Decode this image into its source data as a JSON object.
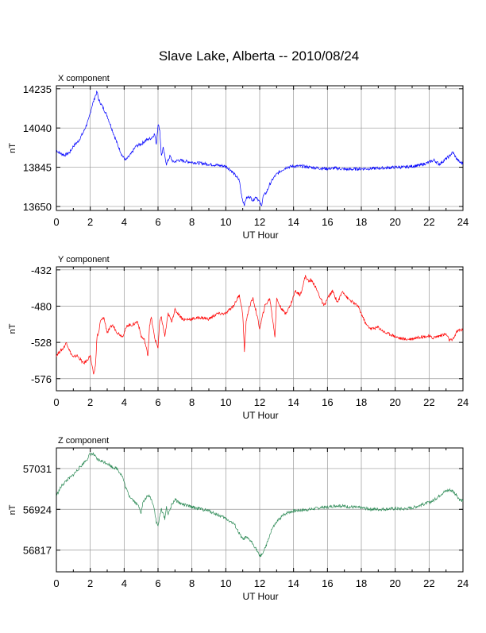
{
  "page": {
    "title": "Slave Lake, Alberta -- 2010/08/24"
  },
  "chart_data": [
    {
      "type": "line",
      "panel_label": "X component",
      "xlabel": "UT Hour",
      "ylabel": "nT",
      "xlim": [
        0,
        24
      ],
      "ylim": [
        13630,
        14250
      ],
      "xticks": [
        0,
        2,
        4,
        6,
        8,
        10,
        12,
        14,
        16,
        18,
        20,
        22,
        24
      ],
      "yticks": [
        13650,
        13845,
        14040,
        14235
      ],
      "grid": true,
      "color": "#0000ff",
      "series": [
        {
          "x": [
            0,
            0.2,
            0.5,
            0.8,
            1.0,
            1.3,
            1.6,
            1.9,
            2.1,
            2.3,
            2.4,
            2.5,
            2.7,
            3.0,
            3.3,
            3.6,
            3.9,
            4.1,
            4.4,
            4.7,
            5.0,
            5.3,
            5.6,
            5.8,
            5.9,
            6.0,
            6.1,
            6.2,
            6.3,
            6.5,
            6.7,
            6.9,
            7.2,
            7.6,
            8.0,
            8.5,
            9.0,
            9.5,
            10.0,
            10.3,
            10.6,
            10.8,
            10.9,
            11.0,
            11.1,
            11.2,
            11.4,
            11.6,
            11.8,
            12.0,
            12.1,
            12.2,
            12.4,
            12.6,
            12.8,
            13.0,
            13.3,
            13.6,
            14.0,
            14.5,
            15.0,
            15.5,
            16.0,
            16.5,
            17.0,
            17.5,
            18.0,
            18.5,
            19.0,
            19.5,
            20.0,
            20.5,
            21.0,
            21.5,
            22.0,
            22.3,
            22.6,
            22.9,
            23.2,
            23.4,
            23.6,
            23.8,
            24.0
          ],
          "y": [
            13930,
            13915,
            13905,
            13920,
            13950,
            13975,
            14020,
            14080,
            14150,
            14200,
            14220,
            14180,
            14150,
            14100,
            14030,
            13960,
            13900,
            13880,
            13910,
            13950,
            13960,
            13980,
            13990,
            14010,
            13960,
            14060,
            14030,
            13900,
            13940,
            13860,
            13900,
            13870,
            13880,
            13875,
            13870,
            13865,
            13860,
            13855,
            13850,
            13830,
            13800,
            13780,
            13720,
            13680,
            13660,
            13690,
            13700,
            13680,
            13700,
            13670,
            13650,
            13700,
            13720,
            13760,
            13790,
            13810,
            13830,
            13845,
            13850,
            13850,
            13845,
            13840,
            13838,
            13840,
            13835,
            13835,
            13838,
            13838,
            13840,
            13842,
            13845,
            13845,
            13850,
            13855,
            13870,
            13880,
            13860,
            13880,
            13900,
            13920,
            13890,
            13870,
            13865
          ]
        }
      ]
    },
    {
      "type": "line",
      "panel_label": "Y component",
      "xlabel": "UT Hour",
      "ylabel": "nT",
      "xlim": [
        0,
        24
      ],
      "ylim": [
        -592,
        -428
      ],
      "xticks": [
        0,
        2,
        4,
        6,
        8,
        10,
        12,
        14,
        16,
        18,
        20,
        22,
        24
      ],
      "yticks": [
        -576,
        -528,
        -480,
        -432
      ],
      "grid": true,
      "color": "#ff0000",
      "series": [
        {
          "x": [
            0,
            0.2,
            0.4,
            0.6,
            0.8,
            1.0,
            1.2,
            1.4,
            1.6,
            1.8,
            2.0,
            2.1,
            2.2,
            2.3,
            2.4,
            2.5,
            2.6,
            2.8,
            3.0,
            3.3,
            3.6,
            3.9,
            4.2,
            4.5,
            4.8,
            5.0,
            5.2,
            5.4,
            5.5,
            5.6,
            5.8,
            6.0,
            6.1,
            6.2,
            6.4,
            6.6,
            6.8,
            7.0,
            7.5,
            8.0,
            8.5,
            9.0,
            9.5,
            10.0,
            10.5,
            10.8,
            11.0,
            11.1,
            11.2,
            11.4,
            11.6,
            11.8,
            12.0,
            12.3,
            12.6,
            12.9,
            13.0,
            13.2,
            13.5,
            13.8,
            14.1,
            14.4,
            14.7,
            14.9,
            15.0,
            15.2,
            15.5,
            15.8,
            16.0,
            16.3,
            16.6,
            16.9,
            17.2,
            17.5,
            17.8,
            18.0,
            18.3,
            18.6,
            19.0,
            19.4,
            19.8,
            20.2,
            20.6,
            21.0,
            21.4,
            21.8,
            22.0,
            22.2,
            22.5,
            22.8,
            23.0,
            23.2,
            23.4,
            23.6,
            23.8,
            24.0
          ],
          "y": [
            -545,
            -540,
            -536,
            -528,
            -540,
            -548,
            -545,
            -550,
            -556,
            -552,
            -545,
            -560,
            -570,
            -560,
            -520,
            -515,
            -500,
            -495,
            -515,
            -505,
            -515,
            -520,
            -505,
            -505,
            -500,
            -520,
            -525,
            -545,
            -505,
            -495,
            -522,
            -535,
            -500,
            -495,
            -520,
            -490,
            -500,
            -485,
            -498,
            -497,
            -495,
            -497,
            -490,
            -490,
            -478,
            -465,
            -490,
            -540,
            -500,
            -480,
            -470,
            -488,
            -510,
            -480,
            -470,
            -520,
            -470,
            -480,
            -490,
            -480,
            -460,
            -465,
            -440,
            -448,
            -445,
            -450,
            -465,
            -480,
            -470,
            -460,
            -475,
            -460,
            -470,
            -475,
            -480,
            -490,
            -505,
            -510,
            -508,
            -515,
            -518,
            -522,
            -524,
            -523,
            -521,
            -520,
            -520,
            -522,
            -520,
            -518,
            -517,
            -525,
            -525,
            -515,
            -511,
            -512
          ]
        }
      ]
    },
    {
      "type": "line",
      "panel_label": "Z component",
      "xlabel": "UT Hour",
      "ylabel": "nT",
      "xlim": [
        0,
        24
      ],
      "ylim": [
        56760,
        57085
      ],
      "xticks": [
        0,
        2,
        4,
        6,
        8,
        10,
        12,
        14,
        16,
        18,
        20,
        22,
        24
      ],
      "yticks": [
        56817,
        56924,
        57031
      ],
      "grid": true,
      "color": "#2e8b57",
      "series": [
        {
          "x": [
            0,
            0.3,
            0.6,
            0.9,
            1.2,
            1.5,
            1.8,
            2.0,
            2.2,
            2.4,
            2.7,
            3.0,
            3.3,
            3.6,
            3.9,
            4.1,
            4.3,
            4.6,
            4.9,
            5.0,
            5.1,
            5.3,
            5.5,
            5.7,
            5.8,
            5.9,
            6.0,
            6.1,
            6.2,
            6.4,
            6.5,
            6.6,
            6.8,
            7.0,
            7.3,
            7.6,
            8.0,
            8.5,
            9.0,
            9.5,
            10.0,
            10.5,
            10.8,
            11.0,
            11.2,
            11.5,
            11.8,
            12.0,
            12.1,
            12.2,
            12.4,
            12.7,
            13.0,
            13.3,
            13.6,
            14.0,
            14.5,
            15.0,
            15.5,
            16.0,
            16.5,
            17.0,
            17.5,
            18.0,
            18.5,
            19.0,
            19.5,
            20.0,
            20.5,
            21.0,
            21.5,
            22.0,
            22.3,
            22.6,
            22.9,
            23.2,
            23.4,
            23.6,
            23.8,
            24.0
          ],
          "y": [
            56960,
            56985,
            57000,
            57010,
            57025,
            57040,
            57055,
            57070,
            57068,
            57055,
            57050,
            57045,
            57035,
            57030,
            57010,
            56980,
            56960,
            56945,
            56930,
            56915,
            56940,
            56955,
            56960,
            56940,
            56920,
            56890,
            56880,
            56905,
            56925,
            56900,
            56930,
            56910,
            56935,
            56950,
            56940,
            56935,
            56930,
            56925,
            56920,
            56910,
            56900,
            56885,
            56860,
            56845,
            56850,
            56840,
            56820,
            56800,
            56805,
            56810,
            56830,
            56870,
            56890,
            56905,
            56915,
            56920,
            56922,
            56924,
            56928,
            56930,
            56934,
            56932,
            56930,
            56928,
            56925,
            56924,
            56925,
            56926,
            56925,
            56928,
            56935,
            56942,
            56948,
            56960,
            56970,
            56975,
            56972,
            56962,
            56950,
            56945
          ]
        }
      ]
    }
  ]
}
